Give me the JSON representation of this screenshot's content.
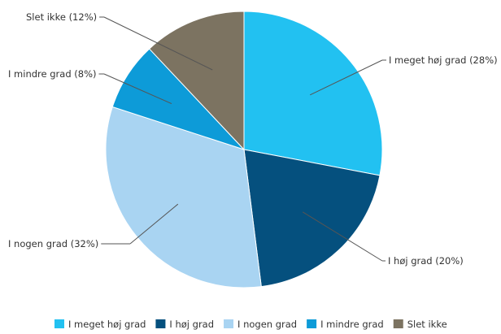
{
  "chart_data": {
    "type": "pie",
    "start_angle_deg": 0,
    "direction": "clockwise",
    "slices": [
      {
        "label": "I meget høj grad",
        "value": 28,
        "display": "I meget høj grad (28%)",
        "color": "#22c1f1"
      },
      {
        "label": "I høj grad",
        "value": 20,
        "display": "I høj grad (20%)",
        "color": "#05507e"
      },
      {
        "label": "I nogen grad",
        "value": 32,
        "display": "I nogen grad (32%)",
        "color": "#a9d4f2"
      },
      {
        "label": "I mindre grad",
        "value": 8,
        "display": "I mindre grad (8%)",
        "color": "#0d9bd8"
      },
      {
        "label": "Slet ikke",
        "value": 12,
        "display": "Slet ikke (12%)",
        "color": "#7c7361"
      }
    ],
    "legend": {
      "placement": "bottom",
      "entries": [
        "I meget høj grad",
        "I høj grad",
        "I nogen grad",
        "I mindre grad",
        "Slet ikke"
      ]
    }
  }
}
